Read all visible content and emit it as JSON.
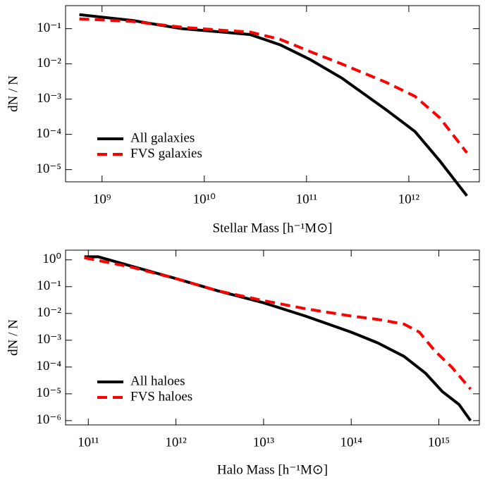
{
  "chart_data": [
    {
      "type": "line",
      "x_label": "Stellar Mass [h⁻¹M⊙]",
      "y_label": "dN / N",
      "log_x": true,
      "log_y": true,
      "legend": "lower left",
      "xlim": [
        440000000,
        4900000000000
      ],
      "ylim": [
        4.5e-06,
        0.45
      ],
      "xticks": [
        {
          "value": 1000000000,
          "label": "10⁹"
        },
        {
          "value": 10000000000,
          "label": "10¹⁰"
        },
        {
          "value": 100000000000,
          "label": "10¹¹"
        },
        {
          "value": 1000000000000,
          "label": "10¹²"
        }
      ],
      "yticks": [
        {
          "value": 0.1,
          "label": "10⁻¹"
        },
        {
          "value": 0.01,
          "label": "10⁻²"
        },
        {
          "value": 0.001,
          "label": "10⁻³"
        },
        {
          "value": 0.0001,
          "label": "10⁻⁴"
        },
        {
          "value": 1e-05,
          "label": "10⁻⁵"
        }
      ],
      "series": [
        {
          "name": "All galaxies",
          "color": "#000000",
          "dash": false,
          "x": [
            600000000,
            2000000000,
            6000000000,
            15000000000,
            28000000000,
            55000000000,
            110000000000,
            220000000000,
            600000000000,
            1150000000000,
            2000000000000,
            3700000000000
          ],
          "values": [
            0.25,
            0.17,
            0.1,
            0.08,
            0.068,
            0.035,
            0.013,
            0.004,
            0.0005,
            0.00012,
            1.8e-05,
            1.8e-06
          ]
        },
        {
          "name": "FVS galaxies",
          "color": "#ff0000",
          "dash": true,
          "x": [
            600000000,
            2000000000,
            6000000000,
            15000000000,
            28000000000,
            55000000000,
            110000000000,
            220000000000,
            600000000000,
            1150000000000,
            2000000000000,
            3700000000000
          ],
          "values": [
            0.19,
            0.16,
            0.11,
            0.09,
            0.08,
            0.05,
            0.022,
            0.01,
            0.003,
            0.0012,
            0.0003,
            3e-05
          ]
        }
      ]
    },
    {
      "type": "line",
      "x_label": "Halo Mass [h⁻¹M⊙]",
      "y_label": "dN / N",
      "log_x": true,
      "log_y": true,
      "legend": "lower left",
      "xlim": [
        55000000000,
        2900000000000000
      ],
      "ylim": [
        6.9e-07,
        2.3
      ],
      "xticks": [
        {
          "value": 100000000000,
          "label": "10¹¹"
        },
        {
          "value": 1000000000000,
          "label": "10¹²"
        },
        {
          "value": 10000000000000,
          "label": "10¹³"
        },
        {
          "value": 100000000000000,
          "label": "10¹⁴"
        },
        {
          "value": 1000000000000000,
          "label": "10¹⁵"
        }
      ],
      "yticks": [
        {
          "value": 1,
          "label": "10⁰"
        },
        {
          "value": 0.1,
          "label": "10⁻¹"
        },
        {
          "value": 0.01,
          "label": "10⁻²"
        },
        {
          "value": 0.001,
          "label": "10⁻³"
        },
        {
          "value": 0.0001,
          "label": "10⁻⁴"
        },
        {
          "value": 1e-05,
          "label": "10⁻⁵"
        },
        {
          "value": 1e-06,
          "label": "10⁻⁶"
        }
      ],
      "series": [
        {
          "name": "All haloes",
          "color": "#000000",
          "dash": false,
          "x": [
            90000000000,
            130000000000,
            300000000000,
            1000000000000,
            3000000000000,
            10000000000000,
            30000000000000,
            100000000000000,
            200000000000000,
            400000000000000,
            700000000000000,
            1100000000000000,
            1700000000000000,
            2300000000000000
          ],
          "values": [
            1.3,
            1.3,
            0.6,
            0.2,
            0.07,
            0.025,
            0.008,
            0.002,
            0.0008,
            0.00025,
            6e-05,
            1.2e-05,
            4e-06,
            1e-06
          ]
        },
        {
          "name": "FVS haloes",
          "color": "#ff0000",
          "dash": true,
          "x": [
            90000000000,
            300000000000,
            1000000000000,
            3000000000000,
            10000000000000,
            30000000000000,
            100000000000000,
            200000000000000,
            400000000000000,
            600000000000000,
            900000000000000,
            1400000000000000,
            2300000000000000
          ],
          "values": [
            1.2,
            0.55,
            0.2,
            0.07,
            0.03,
            0.015,
            0.008,
            0.006,
            0.004,
            0.002,
            0.0004,
            0.0001,
            1.5e-05
          ]
        }
      ]
    }
  ]
}
